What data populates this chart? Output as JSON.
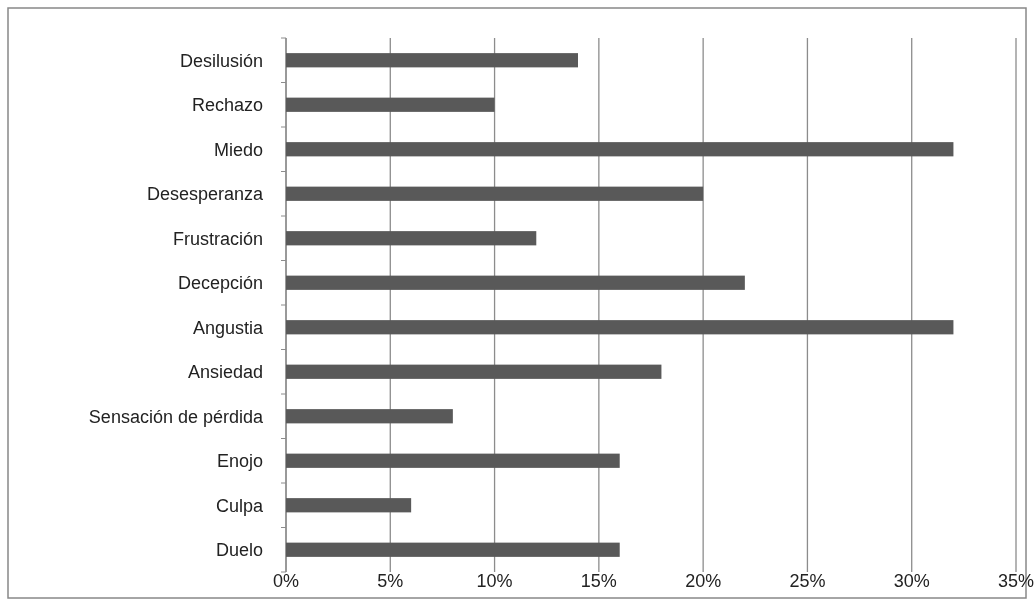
{
  "chart_data": {
    "type": "bar",
    "orientation": "horizontal",
    "categories": [
      "Desilusión",
      "Rechazo",
      "Miedo",
      "Desesperanza",
      "Frustración",
      "Decepción",
      "Angustia",
      "Ansiedad",
      "Sensación de pérdida",
      "Enojo",
      "Culpa",
      "Duelo"
    ],
    "values": [
      14,
      10,
      32,
      20,
      12,
      22,
      32,
      18,
      8,
      16,
      6,
      16
    ],
    "color": "#595959",
    "xlim": [
      0,
      35
    ],
    "xticks": [
      {
        "value": 0,
        "label": "0%"
      },
      {
        "value": 5,
        "label": "5%"
      },
      {
        "value": 10,
        "label": "10%"
      },
      {
        "value": 15,
        "label": "15%"
      },
      {
        "value": 20,
        "label": "20%"
      },
      {
        "value": 25,
        "label": "25%"
      },
      {
        "value": 30,
        "label": "30%"
      },
      {
        "value": 35,
        "label": "35%"
      }
    ],
    "grid": "x"
  }
}
